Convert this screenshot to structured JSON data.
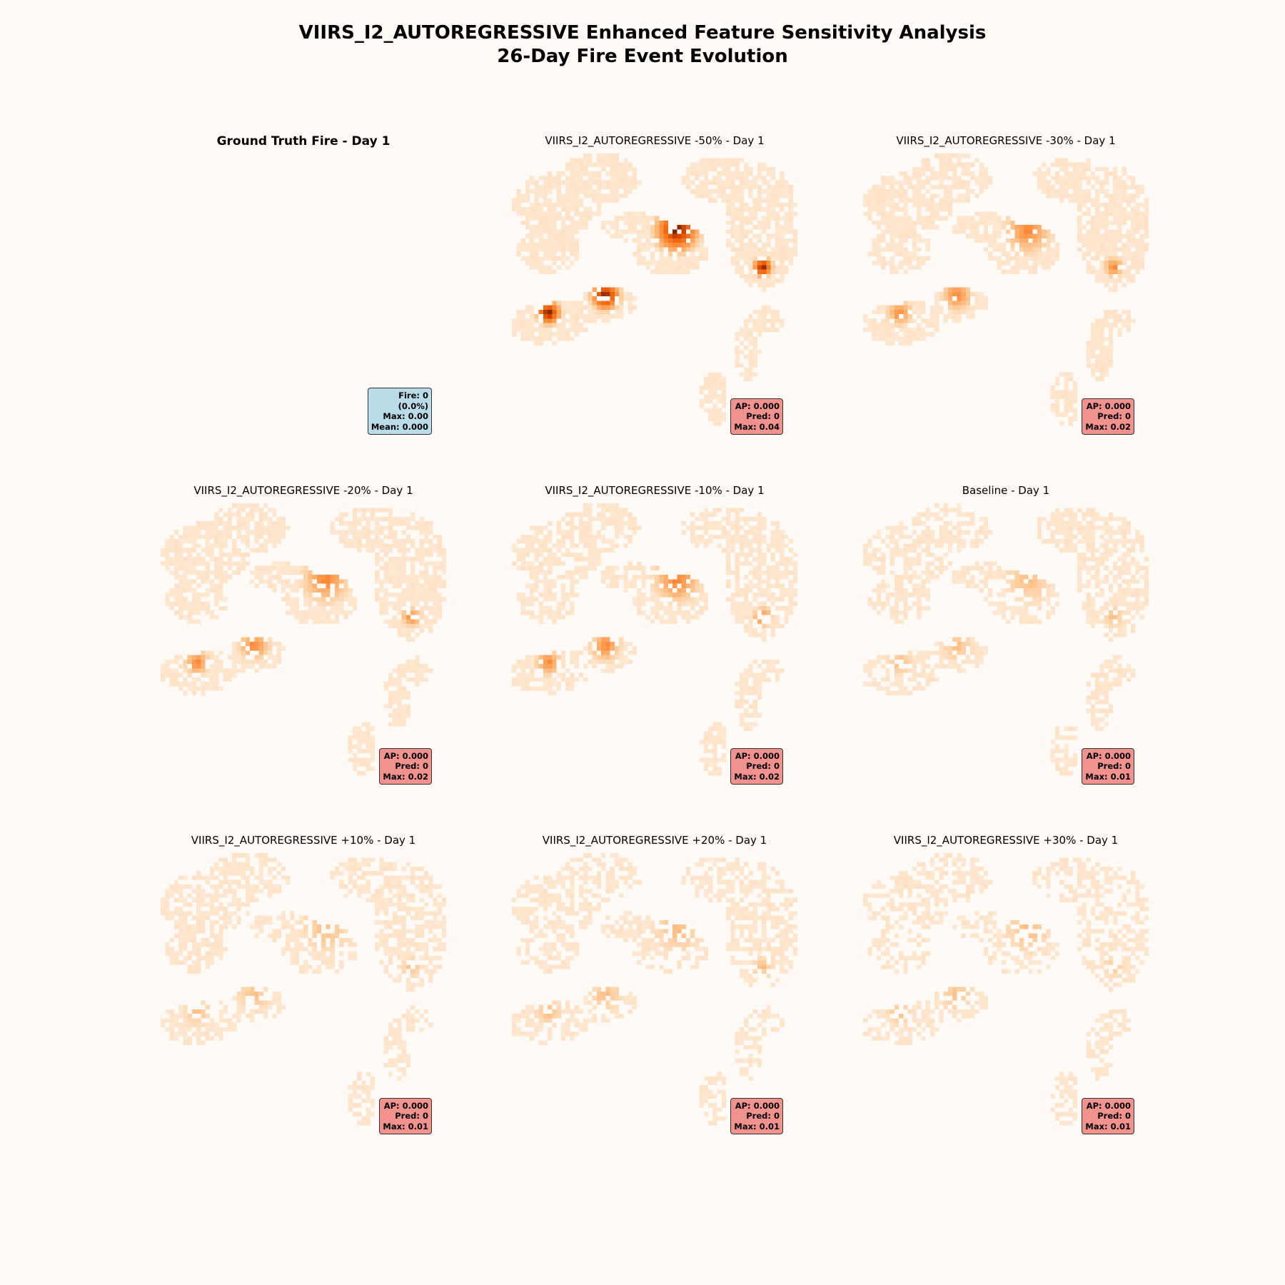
{
  "title_line1": "VIIRS_I2_AUTOREGRESSIVE Enhanced Feature Sensitivity Analysis",
  "title_line2": "26-Day Fire Event Evolution",
  "chart_data": {
    "type": "heatmap",
    "colormap": "Oranges",
    "colors": {
      "background": "#fffaf5",
      "pred_box": "#f1928e",
      "truth_box": "#b9dce8"
    },
    "panels": [
      {
        "id": "ground-truth",
        "title": "Ground Truth Fire - Day 1",
        "kind": "truth",
        "max": 0.0,
        "stats": [
          "Fire: 0",
          "(0.0%)",
          "Max: 0.00",
          "Mean: 0.000"
        ]
      },
      {
        "id": "minus50",
        "title": "VIIRS_I2_AUTOREGRESSIVE -50% - Day 1",
        "kind": "pred",
        "max": 0.04,
        "stats": [
          "AP: 0.000",
          "Pred: 0",
          "Max: 0.04"
        ]
      },
      {
        "id": "minus30",
        "title": "VIIRS_I2_AUTOREGRESSIVE -30% - Day 1",
        "kind": "pred",
        "max": 0.02,
        "stats": [
          "AP: 0.000",
          "Pred: 0",
          "Max: 0.02"
        ]
      },
      {
        "id": "minus20",
        "title": "VIIRS_I2_AUTOREGRESSIVE -20% - Day 1",
        "kind": "pred",
        "max": 0.02,
        "stats": [
          "AP: 0.000",
          "Pred: 0",
          "Max: 0.02"
        ]
      },
      {
        "id": "minus10",
        "title": "VIIRS_I2_AUTOREGRESSIVE -10% - Day 1",
        "kind": "pred",
        "max": 0.02,
        "stats": [
          "AP: 0.000",
          "Pred: 0",
          "Max: 0.02"
        ]
      },
      {
        "id": "baseline",
        "title": "Baseline - Day 1",
        "kind": "pred",
        "max": 0.01,
        "stats": [
          "AP: 0.000",
          "Pred: 0",
          "Max: 0.01"
        ]
      },
      {
        "id": "plus10",
        "title": "VIIRS_I2_AUTOREGRESSIVE +10% - Day 1",
        "kind": "pred",
        "max": 0.01,
        "stats": [
          "AP: 0.000",
          "Pred: 0",
          "Max: 0.01"
        ]
      },
      {
        "id": "plus20",
        "title": "VIIRS_I2_AUTOREGRESSIVE +20% - Day 1",
        "kind": "pred",
        "max": 0.01,
        "stats": [
          "AP: 0.000",
          "Pred: 0",
          "Max: 0.01"
        ]
      },
      {
        "id": "plus30",
        "title": "VIIRS_I2_AUTOREGRESSIVE +30% - Day 1",
        "kind": "pred",
        "max": 0.01,
        "stats": [
          "AP: 0.000",
          "Pred: 0",
          "Max: 0.01"
        ]
      }
    ]
  }
}
